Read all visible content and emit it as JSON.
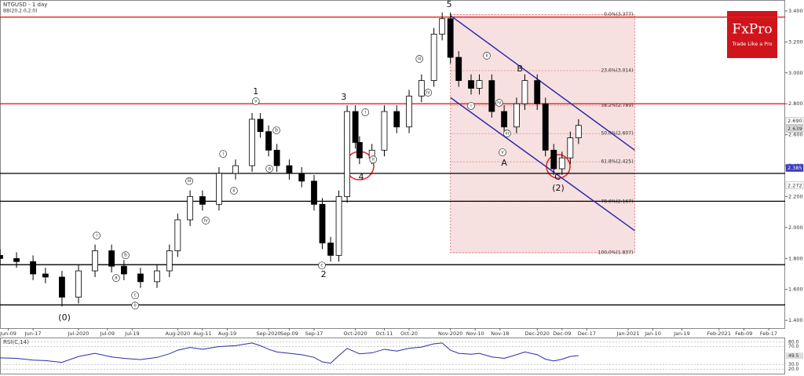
{
  "chart_data": {
    "type": "candlestick",
    "title": "NTGUSD - 1 day",
    "subtitle": "BB(20,2.0,2.0)",
    "x": [
      0,
      4,
      8,
      11,
      15,
      19,
      23,
      27,
      30,
      34,
      38,
      41,
      43,
      46,
      49,
      53,
      57,
      61,
      63,
      65,
      67,
      70,
      73,
      76,
      78,
      80,
      82,
      84,
      86,
      87,
      90,
      93,
      96,
      99,
      102,
      105,
      107,
      109,
      111,
      114,
      116,
      119,
      122,
      125,
      127,
      130,
      132,
      134,
      136,
      138,
      140
    ],
    "open": [
      1.82,
      1.8,
      1.78,
      1.7,
      1.68,
      1.55,
      1.72,
      1.85,
      1.75,
      1.7,
      1.65,
      1.72,
      1.85,
      2.05,
      2.2,
      2.15,
      2.35,
      2.4,
      2.7,
      2.62,
      2.5,
      2.4,
      2.35,
      2.3,
      2.15,
      1.9,
      1.82,
      2.2,
      2.75,
      2.55,
      2.45,
      2.5,
      2.75,
      2.65,
      2.85,
      2.95,
      3.25,
      3.35,
      3.1,
      2.95,
      2.9,
      2.95,
      2.75,
      2.65,
      2.8,
      2.95,
      2.8,
      2.5,
      2.38,
      2.45,
      2.58
    ],
    "high": [
      1.86,
      1.84,
      1.82,
      1.74,
      1.72,
      1.76,
      1.89,
      1.89,
      1.79,
      1.74,
      1.76,
      1.89,
      2.09,
      2.24,
      2.24,
      2.39,
      2.44,
      2.74,
      2.74,
      2.66,
      2.54,
      2.44,
      2.39,
      2.34,
      2.19,
      1.94,
      2.24,
      2.79,
      2.79,
      2.59,
      2.54,
      2.79,
      2.79,
      2.89,
      2.99,
      3.29,
      3.39,
      3.39,
      3.14,
      2.99,
      2.99,
      2.99,
      2.79,
      2.84,
      2.99,
      2.99,
      2.84,
      2.54,
      2.49,
      2.62,
      2.7
    ],
    "low": [
      1.76,
      1.74,
      1.66,
      1.64,
      1.49,
      1.51,
      1.68,
      1.71,
      1.66,
      1.61,
      1.61,
      1.68,
      1.81,
      2.01,
      2.11,
      2.11,
      2.31,
      2.36,
      2.58,
      2.46,
      2.36,
      2.31,
      2.26,
      2.11,
      1.86,
      1.78,
      1.78,
      2.16,
      2.51,
      2.41,
      2.41,
      2.46,
      2.61,
      2.61,
      2.81,
      2.91,
      3.21,
      3.06,
      2.91,
      2.86,
      2.86,
      2.71,
      2.61,
      2.61,
      2.76,
      2.76,
      2.46,
      2.34,
      2.34,
      2.41,
      2.54
    ],
    "close": [
      1.8,
      1.78,
      1.7,
      1.68,
      1.55,
      1.72,
      1.85,
      1.75,
      1.7,
      1.65,
      1.72,
      1.85,
      2.05,
      2.2,
      2.15,
      2.35,
      2.4,
      2.7,
      2.62,
      2.5,
      2.4,
      2.35,
      2.3,
      2.15,
      1.9,
      1.82,
      2.2,
      2.75,
      2.55,
      2.45,
      2.5,
      2.75,
      2.65,
      2.85,
      2.95,
      3.25,
      3.35,
      3.1,
      2.95,
      2.9,
      2.95,
      2.75,
      2.65,
      2.8,
      2.95,
      2.8,
      2.5,
      2.38,
      2.45,
      2.58,
      2.66
    ],
    "up_color": "#ffffff",
    "down_color": "#000000",
    "xlim": [
      0,
      190
    ],
    "ylim": [
      1.35,
      3.43
    ],
    "yticks": [
      {
        "value": 3.4,
        "label": "3.400"
      },
      {
        "value": 3.2,
        "label": "3.200"
      },
      {
        "value": 3.0,
        "label": "3.000"
      },
      {
        "value": 2.8,
        "label": "2.800"
      },
      {
        "value": 2.6,
        "label": "2.600"
      },
      {
        "value": 2.4,
        "label": "2.400"
      },
      {
        "value": 2.2,
        "label": "2.200"
      },
      {
        "value": 2.0,
        "label": "2.000"
      },
      {
        "value": 1.8,
        "label": "1.800"
      },
      {
        "value": 1.6,
        "label": "1.600"
      },
      {
        "value": 1.4,
        "label": "1.400"
      }
    ],
    "xticks": [
      {
        "value": 2,
        "label": "Jun-09"
      },
      {
        "value": 8,
        "label": "Jun-17"
      },
      {
        "value": 19,
        "label": "Jul-2020"
      },
      {
        "value": 26,
        "label": "Jul-09"
      },
      {
        "value": 32,
        "label": "Jul-19"
      },
      {
        "value": 43,
        "label": "Aug-2020"
      },
      {
        "value": 49,
        "label": "Aug-11"
      },
      {
        "value": 55,
        "label": "Aug-19"
      },
      {
        "value": 65,
        "label": "Sep-2020"
      },
      {
        "value": 70,
        "label": "Sep-09"
      },
      {
        "value": 76,
        "label": "Sep-17"
      },
      {
        "value": 86,
        "label": "Oct-2020"
      },
      {
        "value": 93,
        "label": "Oct-11"
      },
      {
        "value": 99,
        "label": "Oct-20"
      },
      {
        "value": 109,
        "label": "Nov-2020"
      },
      {
        "value": 115,
        "label": "Nov-10"
      },
      {
        "value": 121,
        "label": "Nov-18"
      },
      {
        "value": 130,
        "label": "Dec-2020"
      },
      {
        "value": 136,
        "label": "Dec-09"
      },
      {
        "value": 142,
        "label": "Dec-17"
      },
      {
        "value": 152,
        "label": "Jan-2021"
      },
      {
        "value": 158,
        "label": "Jan-10"
      },
      {
        "value": 165,
        "label": "Jan-19"
      },
      {
        "value": 174,
        "label": "Feb-2021"
      },
      {
        "value": 180,
        "label": "Feb-09"
      },
      {
        "value": 186,
        "label": "Feb-17"
      }
    ],
    "hlines": [
      {
        "value": 3.36,
        "color": "#e02020"
      },
      {
        "value": 2.8,
        "color": "#e02020"
      },
      {
        "value": 2.35,
        "color": "#000000"
      },
      {
        "value": 2.17,
        "color": "#000000"
      },
      {
        "value": 1.76,
        "color": "#000000"
      },
      {
        "value": 1.5,
        "color": "#000000"
      }
    ],
    "fib": {
      "x": [
        109,
        153.6
      ],
      "color": "#f7e0e0",
      "levels": [
        {
          "value": 3.377,
          "label": "0.0%(3.377)"
        },
        {
          "value": 3.014,
          "label": "23.6%(3.014)"
        },
        {
          "value": 2.789,
          "label": "38.2%(2.789)"
        },
        {
          "value": 2.607,
          "label": "50.0%(2.607)"
        },
        {
          "value": 2.425,
          "label": "61.8%(2.425)"
        },
        {
          "value": 2.167,
          "label": "78.6%(2.167)"
        },
        {
          "value": 1.837,
          "label": "100.0%(1.837)"
        }
      ]
    },
    "channel": [
      {
        "x": [
          109,
          153.6
        ],
        "y": [
          3.37,
          2.5
        ],
        "color": "#2b2ba8"
      },
      {
        "x": [
          109,
          153.6
        ],
        "y": [
          2.84,
          1.98
        ],
        "color": "#2b2ba8"
      }
    ],
    "annotations": [
      {
        "text": "5",
        "x": 108.7,
        "y": 3.44
      },
      {
        "text": "1",
        "x": 61.9,
        "y": 2.877
      },
      {
        "text": "3",
        "x": 83.2,
        "y": 2.842
      },
      {
        "text": "2",
        "x": 78.3,
        "y": 1.694
      },
      {
        "text": "4",
        "x": 87.4,
        "y": 2.324
      },
      {
        "text": "B",
        "x": 125.8,
        "y": 3.024
      },
      {
        "text": "A",
        "x": 122,
        "y": 2.415
      },
      {
        "text": "C",
        "x": 134.9,
        "y": 2.324
      },
      {
        "text": "(2)",
        "x": 135.1,
        "y": 2.253
      },
      {
        "text": "(0)",
        "x": 15.6,
        "y": 1.415
      }
    ],
    "wave_labels": [
      {
        "text": "v",
        "x": 61.9,
        "y": 2.816
      },
      {
        "text": "iii",
        "x": 45.8,
        "y": 2.3
      },
      {
        "text": "iv",
        "x": 49.8,
        "y": 2.045
      },
      {
        "text": "ii",
        "x": 56.6,
        "y": 2.238
      },
      {
        "text": "i",
        "x": 54,
        "y": 2.476
      },
      {
        "text": "b",
        "x": 30.4,
        "y": 1.821
      },
      {
        "text": "a",
        "x": 28.1,
        "y": 1.674
      },
      {
        "text": "c",
        "x": 32.7,
        "y": 1.562
      },
      {
        "text": "ii",
        "x": 32.7,
        "y": 1.496
      },
      {
        "text": "i",
        "x": 23.4,
        "y": 1.948
      },
      {
        "text": "iii",
        "x": 101.5,
        "y": 3.09
      },
      {
        "text": "iv",
        "x": 103.6,
        "y": 2.872
      },
      {
        "text": "ii",
        "x": 117.8,
        "y": 3.111
      },
      {
        "text": "iv",
        "x": 120.8,
        "y": 2.806
      },
      {
        "text": "v",
        "x": 121.6,
        "y": 2.486
      },
      {
        "text": "iii",
        "x": 122.7,
        "y": 2.608
      },
      {
        "text": "i",
        "x": 114,
        "y": 2.786
      },
      {
        "text": "c",
        "x": 77.9,
        "y": 1.755
      },
      {
        "text": "a",
        "x": 65.2,
        "y": 2.38
      },
      {
        "text": "b",
        "x": 66.9,
        "y": 2.628
      },
      {
        "text": "i",
        "x": 88.4,
        "y": 2.745
      },
      {
        "text": "ii",
        "x": 90.3,
        "y": 2.44
      }
    ],
    "price_tags": [
      {
        "value": 2.69,
        "label": "2.690",
        "color": "#ffffff"
      },
      {
        "value": 2.639,
        "label": "2.639",
        "color": "#dddddd"
      },
      {
        "value": 2.385,
        "label": "2.385",
        "color": "#3a3ab8"
      },
      {
        "value": 2.272,
        "label": "2.272",
        "color": "#ffffff"
      }
    ],
    "rsi": {
      "title": "RSI(C,14)",
      "color": "#2b2ba8",
      "values": [
        45,
        44,
        40,
        39,
        35,
        48,
        55,
        47,
        44,
        41,
        46,
        54,
        62,
        68,
        64,
        70,
        72,
        78,
        72,
        64,
        58,
        55,
        52,
        46,
        36,
        33,
        50,
        66,
        58,
        54,
        56,
        64,
        60,
        66,
        69,
        76,
        78,
        62,
        55,
        53,
        55,
        47,
        44,
        52,
        58,
        52,
        42,
        38,
        42,
        48,
        50
      ],
      "ylim": [
        10,
        90
      ],
      "yticks": [
        {
          "value": 80,
          "label": "80.0"
        },
        {
          "value": 70,
          "label": "70.0"
        },
        {
          "value": 30,
          "label": "30.0"
        },
        {
          "value": 20,
          "label": "20.0"
        }
      ],
      "tag": {
        "value": 49.5,
        "label": "49.5"
      }
    },
    "logo": {
      "name": "FxPro",
      "tagline": "Trade Like a Pro",
      "color": "#d0141c"
    }
  }
}
